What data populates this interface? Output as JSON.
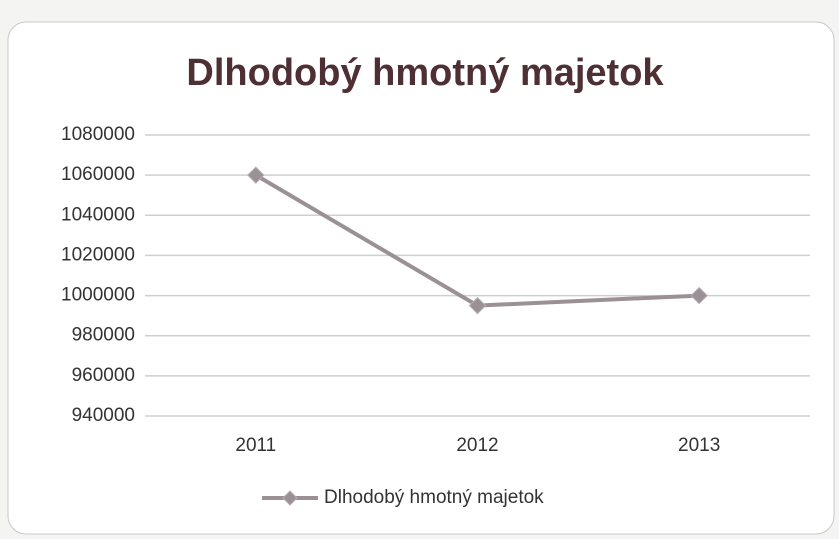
{
  "chart_data": {
    "type": "line",
    "title": "Dlhodobý hmotný majetok",
    "categories": [
      "2011",
      "2012",
      "2013"
    ],
    "series": [
      {
        "name": "Dlhodobý hmotný majetok",
        "color": "#9a9096",
        "values": [
          1060000,
          995000,
          1000000
        ]
      }
    ],
    "ylim": [
      940000,
      1080000
    ],
    "yticks": [
      940000,
      960000,
      980000,
      1000000,
      1020000,
      1040000,
      1060000,
      1080000
    ],
    "grid": true,
    "legend": "bottom"
  }
}
